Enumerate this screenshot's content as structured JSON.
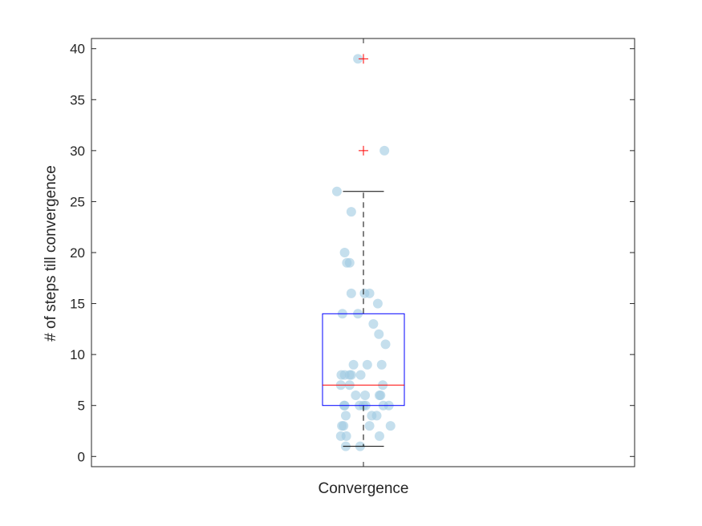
{
  "chart_data": {
    "type": "boxplot",
    "categories": [
      "Convergence"
    ],
    "ylabel": "# of steps till convergence",
    "xlabel": "",
    "ylim": [
      -1,
      41
    ],
    "yticks": [
      0,
      5,
      10,
      15,
      20,
      25,
      30,
      35,
      40
    ],
    "grid": false,
    "box": {
      "q1": 5,
      "median": 7,
      "q3": 14,
      "whisker_low": 1,
      "whisker_high": 26,
      "outliers": [
        30,
        39
      ]
    },
    "points": [
      {
        "jitter": -0.1,
        "y": 39
      },
      {
        "jitter": 0.38,
        "y": 30
      },
      {
        "jitter": -0.48,
        "y": 26
      },
      {
        "jitter": -0.22,
        "y": 24
      },
      {
        "jitter": -0.34,
        "y": 20
      },
      {
        "jitter": -0.3,
        "y": 19
      },
      {
        "jitter": -0.25,
        "y": 19
      },
      {
        "jitter": -0.22,
        "y": 16
      },
      {
        "jitter": 0.02,
        "y": 16
      },
      {
        "jitter": 0.11,
        "y": 16
      },
      {
        "jitter": 0.26,
        "y": 15
      },
      {
        "jitter": -0.38,
        "y": 14
      },
      {
        "jitter": -0.1,
        "y": 14
      },
      {
        "jitter": 0.18,
        "y": 13
      },
      {
        "jitter": 0.28,
        "y": 12
      },
      {
        "jitter": 0.4,
        "y": 11
      },
      {
        "jitter": -0.18,
        "y": 9
      },
      {
        "jitter": 0.07,
        "y": 9
      },
      {
        "jitter": 0.33,
        "y": 9
      },
      {
        "jitter": -0.4,
        "y": 8
      },
      {
        "jitter": -0.34,
        "y": 8
      },
      {
        "jitter": -0.25,
        "y": 8
      },
      {
        "jitter": -0.22,
        "y": 8
      },
      {
        "jitter": -0.05,
        "y": 8
      },
      {
        "jitter": -0.41,
        "y": 7
      },
      {
        "jitter": -0.25,
        "y": 7
      },
      {
        "jitter": 0.35,
        "y": 7
      },
      {
        "jitter": -0.14,
        "y": 6
      },
      {
        "jitter": 0.03,
        "y": 6
      },
      {
        "jitter": 0.29,
        "y": 6
      },
      {
        "jitter": 0.31,
        "y": 6
      },
      {
        "jitter": -0.35,
        "y": 5
      },
      {
        "jitter": -0.34,
        "y": 5
      },
      {
        "jitter": -0.07,
        "y": 5
      },
      {
        "jitter": 0.0,
        "y": 5
      },
      {
        "jitter": 0.04,
        "y": 5
      },
      {
        "jitter": 0.36,
        "y": 5
      },
      {
        "jitter": 0.46,
        "y": 5
      },
      {
        "jitter": -0.32,
        "y": 4
      },
      {
        "jitter": 0.15,
        "y": 4
      },
      {
        "jitter": 0.24,
        "y": 4
      },
      {
        "jitter": -0.39,
        "y": 3
      },
      {
        "jitter": -0.36,
        "y": 3
      },
      {
        "jitter": 0.11,
        "y": 3
      },
      {
        "jitter": 0.49,
        "y": 3
      },
      {
        "jitter": -0.41,
        "y": 2
      },
      {
        "jitter": -0.31,
        "y": 2
      },
      {
        "jitter": 0.29,
        "y": 2
      },
      {
        "jitter": -0.32,
        "y": 1
      },
      {
        "jitter": -0.06,
        "y": 1
      }
    ],
    "colors": {
      "box": "#0000ff",
      "median": "#ff0000",
      "whisker": "#000000",
      "outlier": "#ff0000",
      "points": "#9ecae1",
      "axes": "#262626"
    }
  }
}
